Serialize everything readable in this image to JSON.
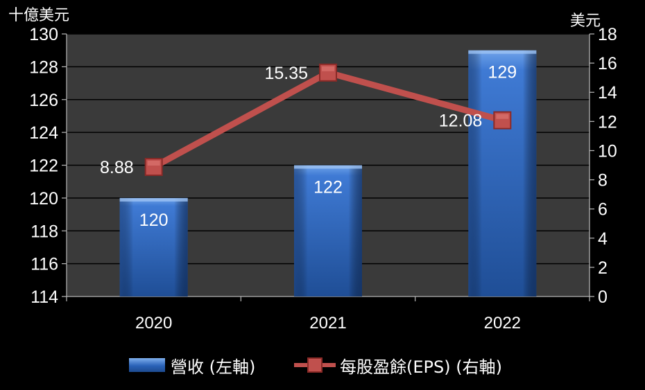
{
  "axis_units": {
    "left": "十億美元",
    "right": "美元"
  },
  "legend": {
    "revenue": "營收 (左軸)",
    "eps": "每股盈餘(EPS) (右軸)"
  },
  "colors": {
    "plot_background": "#3a3a3a",
    "gridline": "#000000",
    "bar": "#2f6cc4",
    "line": "#c0504d"
  },
  "chart_data": {
    "type": "bar",
    "categories": [
      "2020",
      "2021",
      "2022"
    ],
    "series": [
      {
        "name": "營收 (左軸)",
        "type": "bar",
        "axis": "left",
        "values": [
          120,
          122,
          129
        ],
        "labels": [
          "120",
          "122",
          "129"
        ]
      },
      {
        "name": "每股盈餘(EPS) (右軸)",
        "type": "line",
        "axis": "right",
        "values": [
          8.88,
          15.35,
          12.08
        ],
        "labels": [
          "8.88",
          "15.35",
          "12.08"
        ]
      }
    ],
    "y_left": {
      "min": 114,
      "max": 130,
      "step": 2,
      "ticks": [
        "114",
        "116",
        "118",
        "120",
        "122",
        "124",
        "126",
        "128",
        "130"
      ]
    },
    "y_right": {
      "min": 0,
      "max": 18,
      "step": 2,
      "ticks": [
        "0",
        "2",
        "4",
        "6",
        "8",
        "10",
        "12",
        "14",
        "16",
        "18"
      ]
    },
    "grid": true,
    "legend_position": "bottom"
  }
}
